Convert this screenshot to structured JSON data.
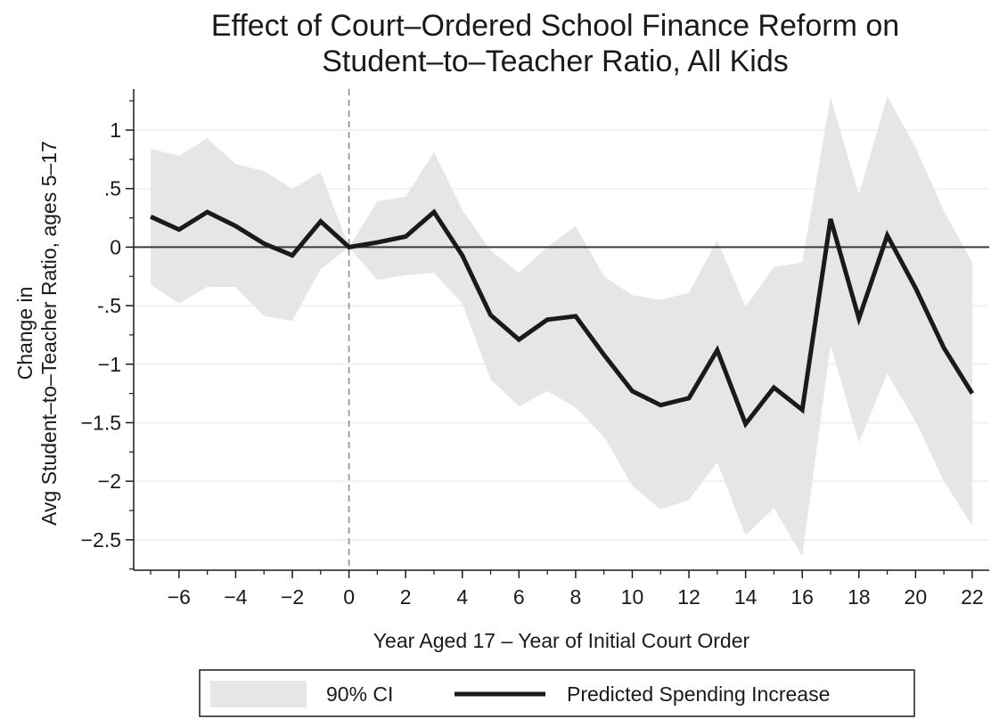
{
  "chart_data": {
    "type": "line",
    "title_lines": [
      "Effect of Court–Ordered School Finance Reform on",
      "Student–to–Teacher Ratio, All Kids"
    ],
    "xlabel": "Year Aged 17 – Year of Initial Court Order",
    "ylabel_lines": [
      "Change in",
      "Avg Student–to–Teacher Ratio, ages 5–17"
    ],
    "xlim": [
      -7.6,
      22.6
    ],
    "ylim": [
      -2.76,
      1.35
    ],
    "x_ticks": [
      -6,
      -4,
      -2,
      0,
      2,
      4,
      6,
      8,
      10,
      12,
      14,
      16,
      18,
      20,
      22
    ],
    "x_tick_labels": [
      "−6",
      "−4",
      "−2",
      "0",
      "2",
      "4",
      "6",
      "8",
      "10",
      "12",
      "14",
      "16",
      "18",
      "20",
      "22"
    ],
    "y_ticks": [
      1,
      0.5,
      0,
      -0.5,
      -1,
      -1.5,
      -2,
      -2.5
    ],
    "y_tick_labels": [
      "1",
      ".5",
      "0",
      "-.5",
      "−1",
      "−1.5",
      "−2",
      "−2.5"
    ],
    "reference_lines": {
      "vertical_x": 0,
      "horizontal_y": 0
    },
    "grid": true,
    "legend_position": "bottom",
    "x": [
      -7,
      -6,
      -5,
      -4,
      -3,
      -2,
      -1,
      0,
      1,
      2,
      3,
      4,
      5,
      6,
      7,
      8,
      9,
      10,
      11,
      12,
      13,
      14,
      15,
      16,
      17,
      18,
      19,
      20,
      21,
      22
    ],
    "series": [
      {
        "name": "Predicted Spending Increase",
        "values": [
          0.26,
          0.15,
          0.3,
          0.18,
          0.03,
          -0.07,
          0.22,
          0.0,
          0.04,
          0.09,
          0.3,
          -0.07,
          -0.58,
          -0.79,
          -0.62,
          -0.59,
          -0.92,
          -1.23,
          -1.35,
          -1.29,
          -0.88,
          -1.51,
          -1.2,
          -1.39,
          0.24,
          -0.61,
          0.1,
          -0.35,
          -0.86,
          -1.25
        ],
        "color": "#1a1a1a"
      }
    ],
    "ci": {
      "name": "90% CI",
      "upper": [
        0.84,
        0.78,
        0.93,
        0.71,
        0.65,
        0.5,
        0.64,
        0.0,
        0.39,
        0.43,
        0.81,
        0.32,
        -0.03,
        -0.22,
        0.0,
        0.18,
        -0.25,
        -0.41,
        -0.45,
        -0.39,
        0.06,
        -0.51,
        -0.17,
        -0.13,
        1.28,
        0.45,
        1.29,
        0.85,
        0.31,
        -0.13
      ],
      "lower": [
        -0.32,
        -0.48,
        -0.34,
        -0.34,
        -0.59,
        -0.63,
        -0.19,
        0.0,
        -0.28,
        -0.24,
        -0.22,
        -0.48,
        -1.13,
        -1.36,
        -1.23,
        -1.37,
        -1.62,
        -2.04,
        -2.24,
        -2.16,
        -1.84,
        -2.46,
        -2.23,
        -2.64,
        -0.84,
        -1.67,
        -1.08,
        -1.49,
        -2.0,
        -2.38
      ],
      "color": "#e6e6e6"
    },
    "legend_entries": [
      "90% CI",
      "Predicted Spending Increase"
    ]
  }
}
